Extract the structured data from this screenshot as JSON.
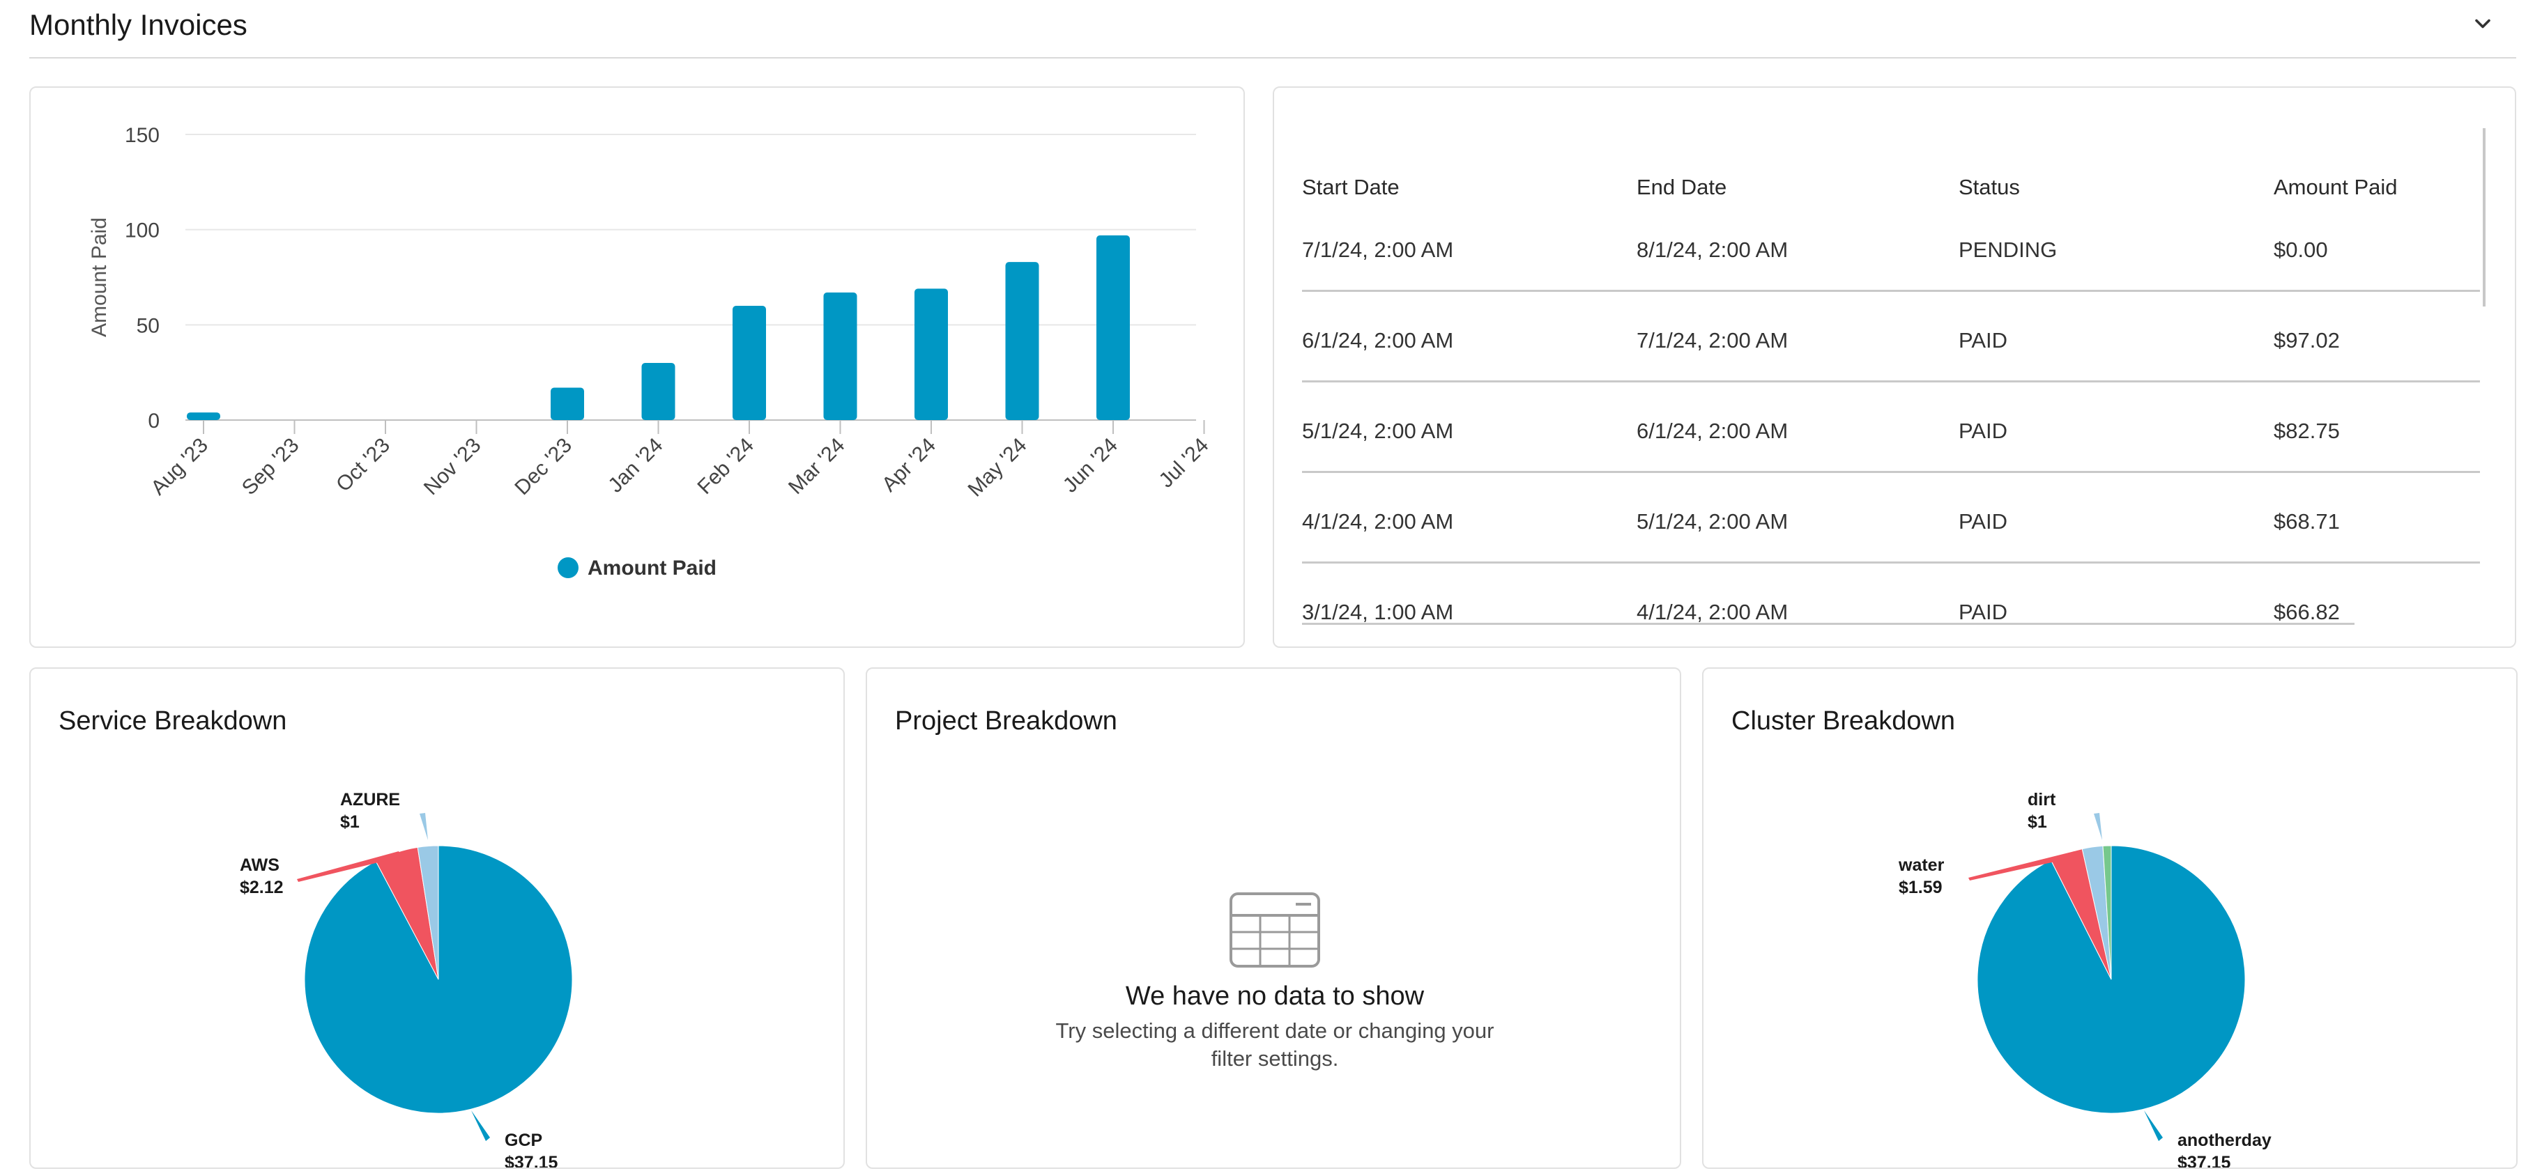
{
  "header": {
    "title": "Monthly Invoices",
    "toggle_icon": "chevron-down-icon"
  },
  "colors": {
    "primary": "#0097c4",
    "aws": "#f0545f",
    "azure": "#9ac9e6",
    "gcp": "#0097c4",
    "green": "#76c88c",
    "grid": "#e7e7e7"
  },
  "invoices_chart": {
    "chart_data": {
      "type": "bar",
      "categories": [
        "Aug '23",
        "Sep '23",
        "Oct '23",
        "Nov '23",
        "Dec '23",
        "Jan '24",
        "Feb '24",
        "Mar '24",
        "Apr '24",
        "May '24",
        "Jun '24",
        "Jul '24"
      ],
      "series": [
        {
          "name": "Amount Paid",
          "values": [
            4,
            0,
            0,
            0,
            17,
            30,
            60,
            67,
            69,
            83,
            97,
            0
          ]
        }
      ],
      "ylabel": "Amount Paid",
      "xlabel": "",
      "ylim": [
        0,
        150
      ],
      "yticks": [
        "0",
        "50",
        "100",
        "150"
      ],
      "grid": true,
      "legend": "bottom-center"
    }
  },
  "invoice_table": {
    "columns": [
      "Start Date",
      "End Date",
      "Status",
      "Amount Paid"
    ],
    "rows": [
      [
        "7/1/24, 2:00 AM",
        "8/1/24, 2:00 AM",
        "PENDING",
        "$0.00"
      ],
      [
        "6/1/24, 2:00 AM",
        "7/1/24, 2:00 AM",
        "PAID",
        "$97.02"
      ],
      [
        "5/1/24, 2:00 AM",
        "6/1/24, 2:00 AM",
        "PAID",
        "$82.75"
      ],
      [
        "4/1/24, 2:00 AM",
        "5/1/24, 2:00 AM",
        "PAID",
        "$68.71"
      ],
      [
        "3/1/24, 1:00 AM",
        "4/1/24, 2:00 AM",
        "PAID",
        "$66.82"
      ]
    ]
  },
  "service_breakdown": {
    "title": "Service Breakdown",
    "chart_data": {
      "type": "pie",
      "slices": [
        {
          "label": "GCP",
          "value_label": "$37.15",
          "value": 37.15
        },
        {
          "label": "AWS",
          "value_label": "$2.12",
          "value": 2.12
        },
        {
          "label": "AZURE",
          "value_label": "$1",
          "value": 1
        }
      ]
    }
  },
  "project_breakdown": {
    "title": "Project Breakdown",
    "empty_icon": "table-icon",
    "empty_title": "We have no data to show",
    "empty_line1": "Try selecting a different date or changing your",
    "empty_line2": "filter settings."
  },
  "cluster_breakdown": {
    "title": "Cluster Breakdown",
    "chart_data": {
      "type": "pie",
      "slices": [
        {
          "label": "anotherday",
          "value_label": "$37.15",
          "value": 37.15
        },
        {
          "label": "water",
          "value_label": "$1.59",
          "value": 1.59
        },
        {
          "label": "dirt",
          "value_label": "$1",
          "value": 1
        },
        {
          "label": "",
          "value_label": "",
          "value": 0.4
        }
      ]
    }
  }
}
